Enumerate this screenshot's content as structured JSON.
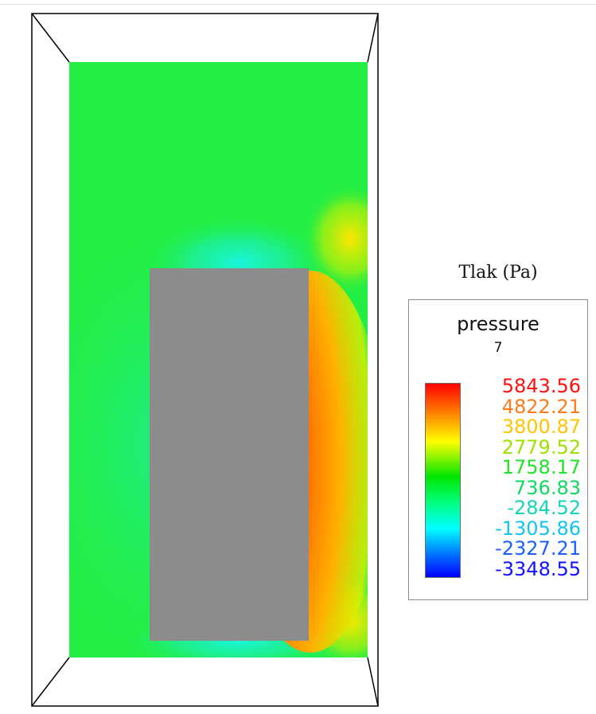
{
  "legend": {
    "title": "Tlak (Pa)",
    "variable": "pressure",
    "timestep": "7",
    "tick_labels": [
      {
        "text": "5843.56",
        "color": "#ff1010"
      },
      {
        "text": "4822.21",
        "color": "#ff7a1a"
      },
      {
        "text": "3800.87",
        "color": "#ffc400"
      },
      {
        "text": "2779.52",
        "color": "#9ee000"
      },
      {
        "text": "1758.17",
        "color": "#22e22a"
      },
      {
        "text": "736.83",
        "color": "#10d860"
      },
      {
        "text": "-284.52",
        "color": "#12d4b6"
      },
      {
        "text": "-1305.86",
        "color": "#12c4f0"
      },
      {
        "text": "-2327.21",
        "color": "#1a60ff"
      },
      {
        "text": "-3348.55",
        "color": "#1212ff"
      }
    ],
    "colormap": [
      "#0000ff",
      "#00ffff",
      "#00ff00",
      "#ffff00",
      "#ff0000"
    ]
  },
  "scene": {
    "field_base_color": "#22ee44",
    "obstacle_color": "#8c8c8c",
    "frame_color": "#000000"
  }
}
